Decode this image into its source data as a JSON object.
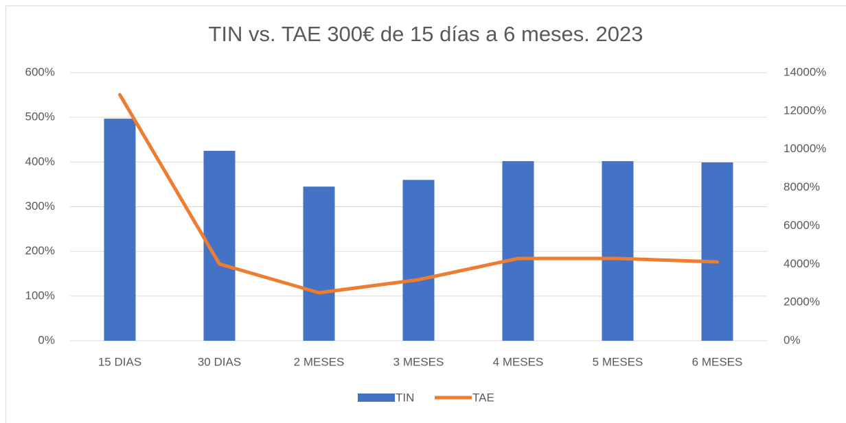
{
  "chart_data": {
    "type": "bar",
    "title": "TIN vs. TAE 300€ de 15 días a 6 meses. 2023",
    "categories": [
      "15 DIAS",
      "30 DIAS",
      "2 MESES",
      "3 MESES",
      "4 MESES",
      "5 MESES",
      "6 MESES"
    ],
    "series": [
      {
        "name": "TIN",
        "type": "bar",
        "color": "#4472c4",
        "values": [
          497,
          425,
          345,
          360,
          402,
          402,
          399
        ]
      },
      {
        "name": "TAE",
        "type": "line",
        "axis": "y2",
        "color": "#ed7d31",
        "values": [
          12850,
          4010,
          2506,
          3187,
          4296,
          4296,
          4117
        ]
      }
    ],
    "ylim": [
      0,
      600
    ],
    "yticks": [
      {
        "value": 0,
        "label": "0%"
      },
      {
        "value": 100,
        "label": "100%"
      },
      {
        "value": 200,
        "label": "200%"
      },
      {
        "value": 300,
        "label": "300%"
      },
      {
        "value": 400,
        "label": "400%"
      },
      {
        "value": 500,
        "label": "500%"
      },
      {
        "value": 600,
        "label": "600%"
      }
    ],
    "y2lim": [
      0,
      14000
    ],
    "y2ticks": [
      {
        "value": 0,
        "label": "0%"
      },
      {
        "value": 2000,
        "label": "2000%"
      },
      {
        "value": 4000,
        "label": "4000%"
      },
      {
        "value": 6000,
        "label": "6000%"
      },
      {
        "value": 8000,
        "label": "8000%"
      },
      {
        "value": 10000,
        "label": "10000%"
      },
      {
        "value": 12000,
        "label": "12000%"
      },
      {
        "value": 14000,
        "label": "14000%"
      }
    ],
    "grid": true,
    "legend": "bottom"
  }
}
